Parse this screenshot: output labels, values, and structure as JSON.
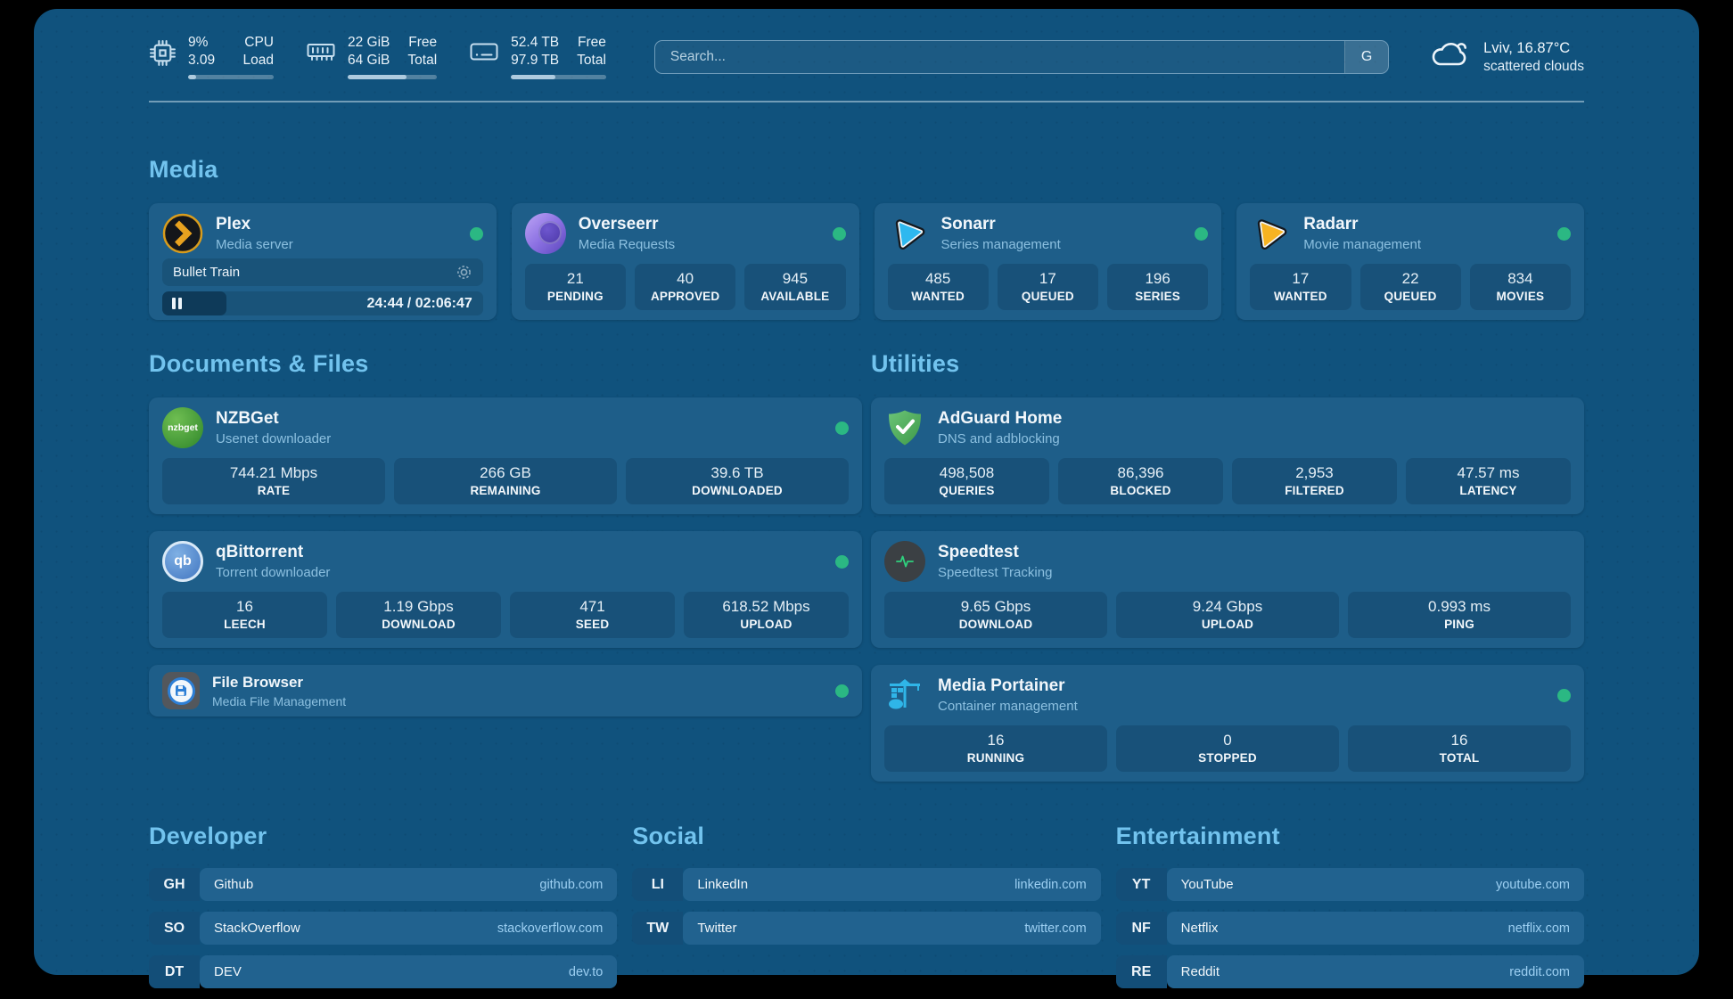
{
  "colors": {
    "page_background": "#10527D",
    "card_background": "#1E5E89",
    "section_title": "#72C3EE",
    "status_online": "#2BB883",
    "bookmark_url": "#9CCFF2"
  },
  "header": {
    "stats": [
      {
        "icon": "cpu-icon",
        "value_top": "9%",
        "value_bottom": "3.09",
        "label_top": "CPU",
        "label_bottom": "Load",
        "progress": 9
      },
      {
        "icon": "memory-icon",
        "value_top": "22 GiB",
        "value_bottom": "64 GiB",
        "label_top": "Free",
        "label_bottom": "Total",
        "progress": 66
      },
      {
        "icon": "disk-icon",
        "value_top": "52.4 TB",
        "value_bottom": "97.9 TB",
        "label_top": "Free",
        "label_bottom": "Total",
        "progress": 47
      }
    ],
    "search": {
      "placeholder": "Search...",
      "button_label": "G"
    },
    "weather": {
      "icon": "cloud-icon",
      "line1": "Lviv, 16.87°C",
      "line2": "scattered clouds"
    }
  },
  "icon_labels": {
    "nzbget": "nzbget",
    "qbittorrent": "qb"
  },
  "sections": {
    "media": {
      "title": "Media",
      "plex": {
        "icon": "plex-icon",
        "name": "Plex",
        "subtitle": "Media server",
        "status": "online",
        "now_playing": {
          "title": "Bullet Train",
          "time": "24:44 / 02:06:47",
          "progress": 20
        }
      },
      "cards": [
        {
          "icon": "overseerr-icon",
          "name": "Overseerr",
          "subtitle": "Media Requests",
          "status": "online",
          "stats": [
            {
              "value": "21",
              "label": "PENDING"
            },
            {
              "value": "40",
              "label": "APPROVED"
            },
            {
              "value": "945",
              "label": "AVAILABLE"
            }
          ]
        },
        {
          "icon": "sonarr-icon",
          "name": "Sonarr",
          "subtitle": "Series management",
          "status": "online",
          "stats": [
            {
              "value": "485",
              "label": "WANTED"
            },
            {
              "value": "17",
              "label": "QUEUED"
            },
            {
              "value": "196",
              "label": "SERIES"
            }
          ]
        },
        {
          "icon": "radarr-icon",
          "name": "Radarr",
          "subtitle": "Movie management",
          "status": "online",
          "stats": [
            {
              "value": "17",
              "label": "WANTED"
            },
            {
              "value": "22",
              "label": "QUEUED"
            },
            {
              "value": "834",
              "label": "MOVIES"
            }
          ]
        }
      ]
    },
    "documents": {
      "title": "Documents & Files",
      "cards": [
        {
          "icon": "nzbget-icon",
          "name": "NZBGet",
          "subtitle": "Usenet downloader",
          "status": "online",
          "stats": [
            {
              "value": "744.21 Mbps",
              "label": "RATE"
            },
            {
              "value": "266 GB",
              "label": "REMAINING"
            },
            {
              "value": "39.6 TB",
              "label": "DOWNLOADED"
            }
          ]
        },
        {
          "icon": "qbittorrent-icon",
          "name": "qBittorrent",
          "subtitle": "Torrent downloader",
          "status": "online",
          "stats": [
            {
              "value": "16",
              "label": "LEECH"
            },
            {
              "value": "1.19 Gbps",
              "label": "DOWNLOAD"
            },
            {
              "value": "471",
              "label": "SEED"
            },
            {
              "value": "618.52 Mbps",
              "label": "UPLOAD"
            }
          ]
        },
        {
          "icon": "filebrowser-icon",
          "name": "File Browser",
          "subtitle": "Media File Management",
          "status": "online",
          "stats": []
        }
      ]
    },
    "utilities": {
      "title": "Utilities",
      "cards": [
        {
          "icon": "adguard-icon",
          "name": "AdGuard Home",
          "subtitle": "DNS and adblocking",
          "status": "none",
          "stats": [
            {
              "value": "498,508",
              "label": "QUERIES"
            },
            {
              "value": "86,396",
              "label": "BLOCKED"
            },
            {
              "value": "2,953",
              "label": "FILTERED"
            },
            {
              "value": "47.57 ms",
              "label": "LATENCY"
            }
          ]
        },
        {
          "icon": "speedtest-icon",
          "name": "Speedtest",
          "subtitle": "Speedtest Tracking",
          "status": "none",
          "stats": [
            {
              "value": "9.65 Gbps",
              "label": "DOWNLOAD"
            },
            {
              "value": "9.24 Gbps",
              "label": "UPLOAD"
            },
            {
              "value": "0.993 ms",
              "label": "PING"
            }
          ]
        },
        {
          "icon": "portainer-icon",
          "name": "Media Portainer",
          "subtitle": "Container management",
          "status": "online",
          "stats": [
            {
              "value": "16",
              "label": "RUNNING"
            },
            {
              "value": "0",
              "label": "STOPPED"
            },
            {
              "value": "16",
              "label": "TOTAL"
            }
          ]
        }
      ]
    }
  },
  "bookmarks": [
    {
      "title": "Developer",
      "items": [
        {
          "abbr": "GH",
          "name": "Github",
          "url": "github.com"
        },
        {
          "abbr": "SO",
          "name": "StackOverflow",
          "url": "stackoverflow.com"
        },
        {
          "abbr": "DT",
          "name": "DEV",
          "url": "dev.to"
        }
      ]
    },
    {
      "title": "Social",
      "items": [
        {
          "abbr": "LI",
          "name": "LinkedIn",
          "url": "linkedin.com"
        },
        {
          "abbr": "TW",
          "name": "Twitter",
          "url": "twitter.com"
        }
      ]
    },
    {
      "title": "Entertainment",
      "items": [
        {
          "abbr": "YT",
          "name": "YouTube",
          "url": "youtube.com"
        },
        {
          "abbr": "NF",
          "name": "Netflix",
          "url": "netflix.com"
        },
        {
          "abbr": "RE",
          "name": "Reddit",
          "url": "reddit.com"
        }
      ]
    }
  ]
}
